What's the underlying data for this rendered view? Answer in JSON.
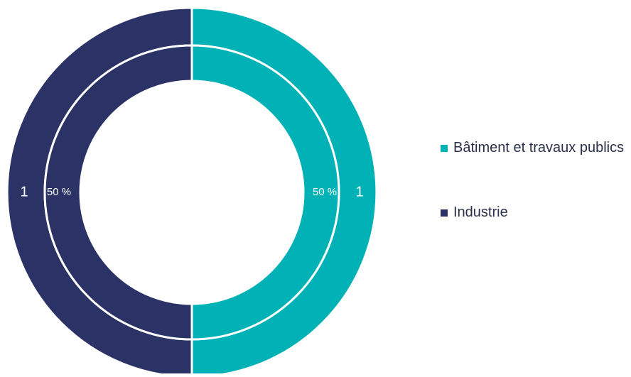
{
  "chart_data": {
    "type": "pie",
    "title": "",
    "categories": [
      "Bâtiment et travaux publics",
      "Industrie"
    ],
    "series": [
      {
        "ring": "outer",
        "values": [
          1,
          1
        ],
        "labels": [
          "1",
          "1"
        ]
      },
      {
        "ring": "inner",
        "values": [
          50,
          50
        ],
        "labels": [
          "50 %",
          "50 %"
        ]
      }
    ],
    "colors": [
      "#00b2b5",
      "#2a3266"
    ],
    "legend_position": "right",
    "legend": [
      {
        "label": "Bâtiment et travaux publics",
        "color": "#00b2b5"
      },
      {
        "label": "Industrie",
        "color": "#2a3266"
      }
    ]
  }
}
